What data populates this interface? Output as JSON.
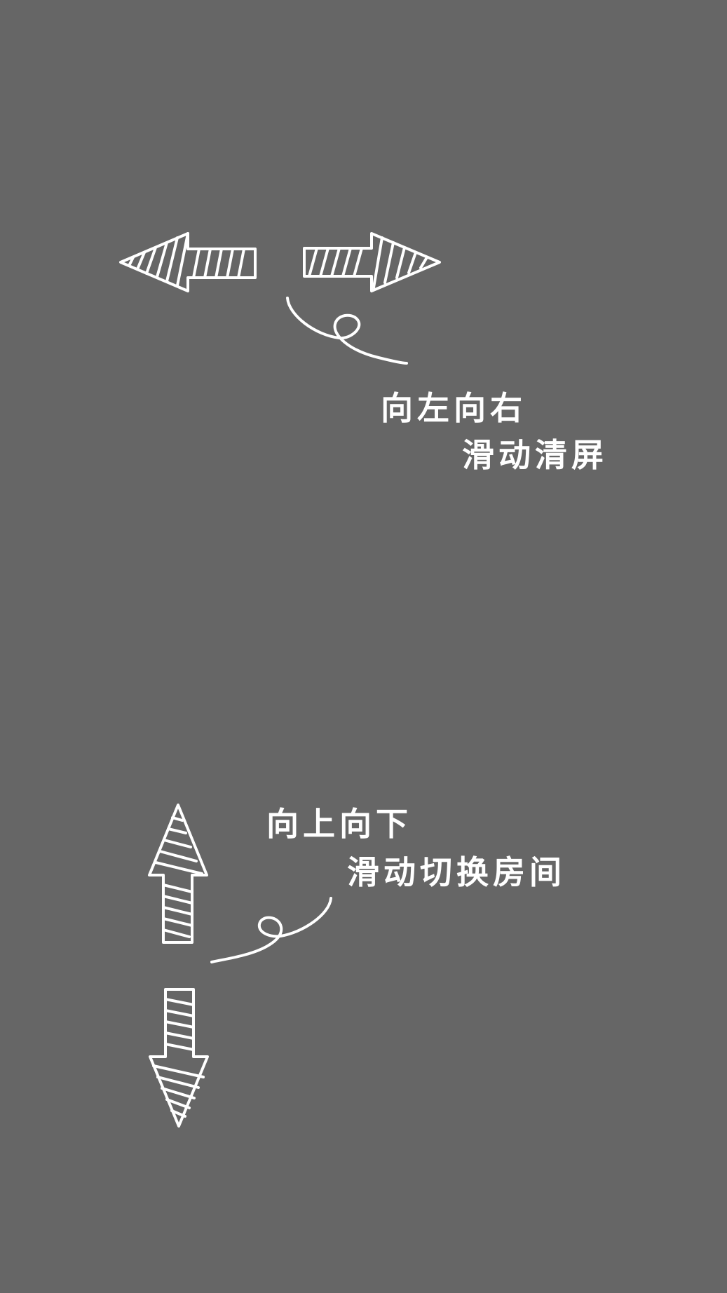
{
  "colors": {
    "background": "#666666",
    "foreground": "#ffffff"
  },
  "hints": {
    "horizontal": {
      "line1": "向左向右",
      "line2": "滑动清屏"
    },
    "vertical": {
      "line1": "向上向下",
      "line2": "滑动切换房间"
    }
  },
  "icons": [
    "arrow-left-icon",
    "arrow-right-icon",
    "arrow-up-icon",
    "arrow-down-icon",
    "curly-pointer-icon"
  ]
}
